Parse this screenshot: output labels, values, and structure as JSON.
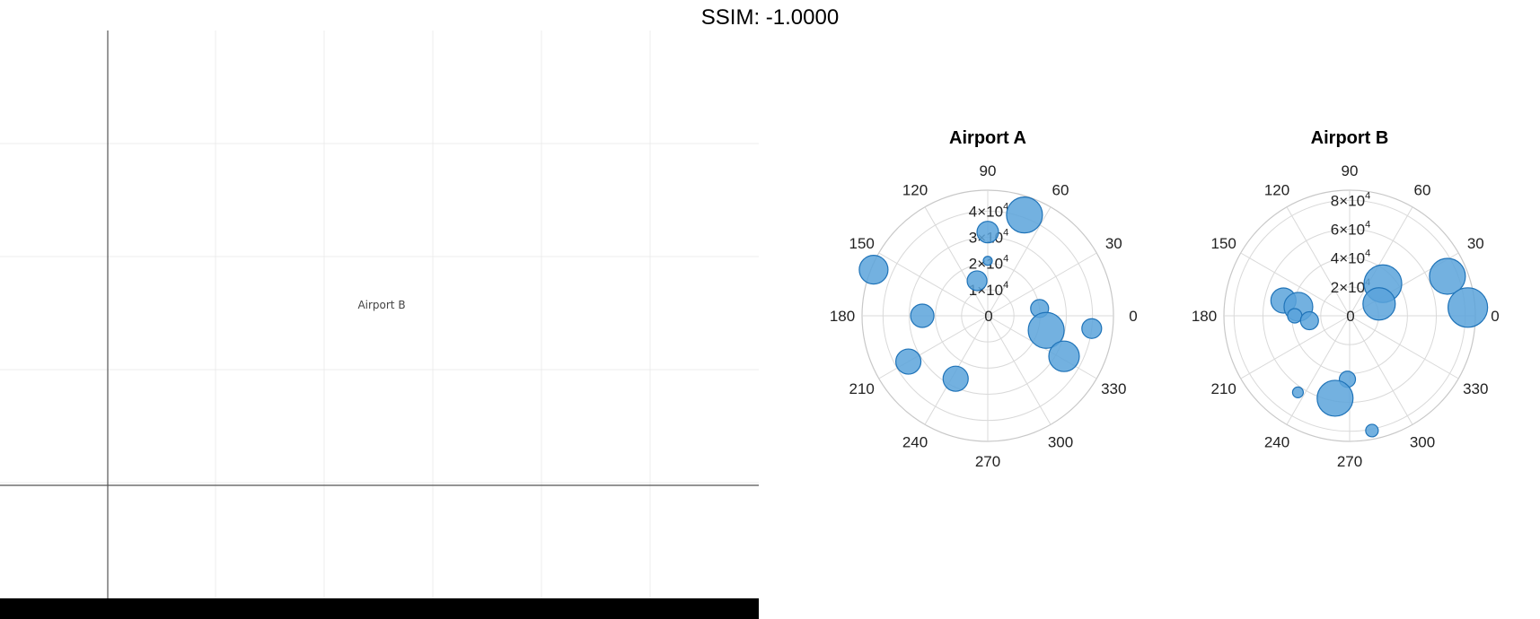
{
  "header": {
    "ssim_text": "SSIM: -1.0000"
  },
  "left_panel": {
    "label": "Airport B"
  },
  "colors": {
    "marker_fill": "#5ba3db",
    "marker_edge": "#1f73b8",
    "grid": "#d9d9d9",
    "axis_edge": "#c8c8c8"
  },
  "chart_data": [
    {
      "type": "scatter",
      "subtype": "polar-bubble",
      "title": "Airport A",
      "theta_ticks": [
        0,
        30,
        60,
        90,
        120,
        150,
        180,
        210,
        240,
        270,
        300,
        330
      ],
      "r_ticks": [
        0,
        10000,
        20000,
        30000,
        40000
      ],
      "r_tick_labels": [
        {
          "mant": "0",
          "exp": ""
        },
        {
          "mant": "1×10",
          "exp": "4"
        },
        {
          "mant": "2×10",
          "exp": "4"
        },
        {
          "mant": "3×10",
          "exp": "4"
        },
        {
          "mant": "4×10",
          "exp": "4"
        }
      ],
      "rlim": [
        0,
        48000
      ],
      "points": [
        {
          "theta": 70,
          "r": 41000,
          "size": 20
        },
        {
          "theta": 90,
          "r": 32000,
          "size": 12
        },
        {
          "theta": 90,
          "r": 21000,
          "size": 5
        },
        {
          "theta": 107,
          "r": 14000,
          "size": 11
        },
        {
          "theta": 158,
          "r": 47000,
          "size": 16
        },
        {
          "theta": 180,
          "r": 25000,
          "size": 13
        },
        {
          "theta": 210,
          "r": 35000,
          "size": 14
        },
        {
          "theta": 243,
          "r": 27000,
          "size": 14
        },
        {
          "theta": 8,
          "r": 20000,
          "size": 10
        },
        {
          "theta": 353,
          "r": 40000,
          "size": 11
        },
        {
          "theta": 346,
          "r": 23000,
          "size": 20
        },
        {
          "theta": 332,
          "r": 33000,
          "size": 17
        }
      ]
    },
    {
      "type": "scatter",
      "subtype": "polar-bubble",
      "title": "Airport B",
      "theta_ticks": [
        0,
        30,
        60,
        90,
        120,
        150,
        180,
        210,
        240,
        270,
        300,
        330
      ],
      "r_ticks": [
        0,
        20000,
        40000,
        60000,
        80000
      ],
      "r_tick_labels": [
        {
          "mant": "0",
          "exp": ""
        },
        {
          "mant": "2×10",
          "exp": "4"
        },
        {
          "mant": "4×10",
          "exp": "4"
        },
        {
          "mant": "6×10",
          "exp": "4"
        },
        {
          "mant": "8×10",
          "exp": "4"
        }
      ],
      "rlim": [
        0,
        87000
      ],
      "points": [
        {
          "theta": 22,
          "r": 73000,
          "size": 20
        },
        {
          "theta": 4,
          "r": 82000,
          "size": 22
        },
        {
          "theta": 44,
          "r": 32000,
          "size": 21
        },
        {
          "theta": 22,
          "r": 22000,
          "size": 18
        },
        {
          "theta": 167,
          "r": 47000,
          "size": 14
        },
        {
          "theta": 170,
          "r": 36000,
          "size": 16
        },
        {
          "theta": 180,
          "r": 38000,
          "size": 8
        },
        {
          "theta": 187,
          "r": 28000,
          "size": 10
        },
        {
          "theta": 268,
          "r": 44000,
          "size": 9
        },
        {
          "theta": 260,
          "r": 58000,
          "size": 20
        },
        {
          "theta": 236,
          "r": 64000,
          "size": 6
        },
        {
          "theta": 281,
          "r": 81000,
          "size": 7
        }
      ]
    }
  ]
}
